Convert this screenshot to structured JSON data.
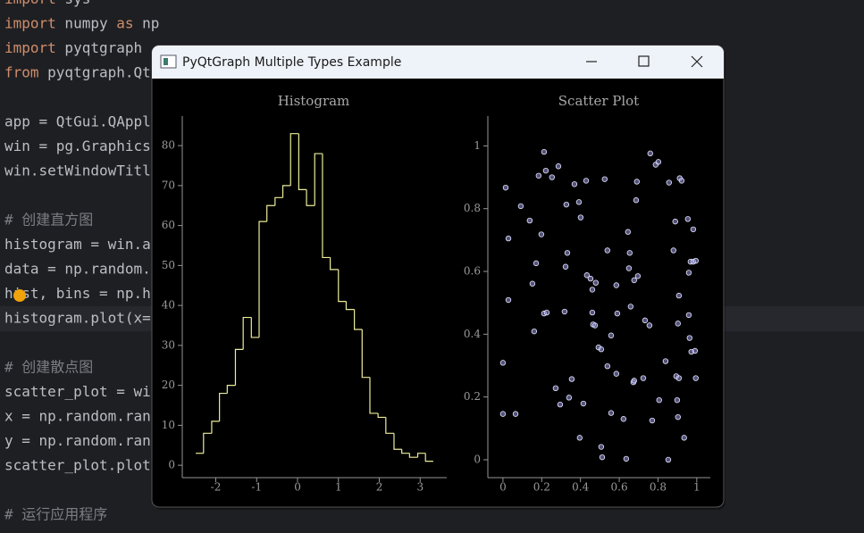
{
  "editor": {
    "blocks": [
      [
        "import sys",
        "import numpy as np",
        "import pyqtgraph",
        "from pyqtgraph.Qt"
      ],
      [
        "app = QtGui.QAppl",
        "win = pg.Graphics",
        "win.setWindowTitl"
      ],
      [
        "# 创建直方图",
        "histogram = win.a",
        "data = np.random.",
        "hist, bins = np.h",
        "histogram.plot(x="
      ],
      [
        "# 创建散点图",
        "scatter_plot = wi",
        "x = np.random.ran",
        "y = np.random.ran",
        "scatter_plot.plot"
      ],
      [
        "# 运行应用程序"
      ]
    ]
  },
  "window": {
    "title": "PyQtGraph Multiple Types Example"
  },
  "chart_data": [
    {
      "type": "histogram",
      "title": "Histogram",
      "bins": [
        -2.49,
        -2.3,
        -2.1,
        -1.91,
        -1.72,
        -1.52,
        -1.33,
        -1.13,
        -0.94,
        -0.75,
        -0.55,
        -0.36,
        -0.17,
        0.03,
        0.22,
        0.42,
        0.61,
        0.8,
        1.0,
        1.19,
        1.39,
        1.58,
        1.77,
        1.97,
        2.16,
        2.36,
        2.55,
        2.74,
        2.94,
        3.13,
        3.32
      ],
      "values": [
        3,
        8,
        11,
        18,
        20,
        29,
        37,
        32,
        61,
        65,
        67,
        70,
        83,
        69,
        65,
        78,
        52,
        49,
        41,
        39,
        34,
        22,
        13,
        12,
        8,
        4,
        3,
        2,
        3,
        1
      ],
      "color": "#ecec9c",
      "xlim": [
        -2.82,
        3.65
      ],
      "ylim": [
        -3.1,
        87.4
      ],
      "xticks": [
        -2,
        -1,
        0,
        1,
        2,
        3
      ],
      "yticks": [
        0,
        10,
        20,
        30,
        40,
        50,
        60,
        70,
        80
      ]
    },
    {
      "type": "scatter",
      "title": "Scatter Plot",
      "x": [
        0.014,
        0.028,
        0.028,
        0,
        0,
        0.065,
        0.092,
        0.138,
        0.171,
        0.152,
        0.184,
        0.198,
        0.212,
        0.221,
        0.212,
        0.226,
        0.161,
        0.253,
        0.286,
        0.272,
        0.295,
        0.318,
        0.327,
        0.323,
        0.332,
        0.341,
        0.355,
        0.369,
        0.392,
        0.401,
        0.396,
        0.415,
        0.429,
        0.433,
        0.452,
        0.461,
        0.461,
        0.465,
        0.475,
        0.479,
        0.493,
        0.507,
        0.507,
        0.512,
        0.525,
        0.539,
        0.539,
        0.558,
        0.558,
        0.585,
        0.585,
        0.59,
        0.622,
        0.636,
        0.645,
        0.654,
        0.65,
        0.659,
        0.673,
        0.677,
        0.677,
        0.687,
        0.691,
        0.696,
        0.724,
        0.733,
        0.756,
        0.76,
        0.77,
        0.788,
        0.802,
        0.806,
        0.839,
        0.853,
        0.857,
        0.88,
        0.889,
        0.894,
        0.899,
        0.903,
        0.908,
        0.903,
        0.908,
        0.912,
        0.922,
        0.935,
        0.954,
        0.959,
        0.959,
        0.963,
        0.968,
        0.972,
        0.982,
        0.991,
        0.982,
        0.995,
        0.995
      ],
      "y": [
        0.867,
        0.705,
        0.509,
        0.309,
        0.146,
        0.146,
        0.808,
        0.762,
        0.626,
        0.561,
        0.905,
        0.718,
        0.981,
        0.921,
        0.466,
        0.469,
        0.409,
        0.9,
        0.935,
        0.228,
        0.176,
        0.472,
        0.813,
        0.615,
        0.659,
        0.198,
        0.257,
        0.878,
        0.821,
        0.772,
        0.07,
        0.179,
        0.889,
        0.588,
        0.577,
        0.542,
        0.469,
        0.431,
        0.428,
        0.564,
        0.358,
        0.352,
        0.041,
        0.008,
        0.894,
        0.298,
        0.667,
        0.149,
        0.396,
        0.556,
        0.274,
        0.466,
        0.13,
        0.003,
        0.726,
        0.659,
        0.61,
        0.488,
        0.247,
        0.252,
        0.572,
        0.827,
        0.886,
        0.585,
        0.26,
        0.444,
        0.428,
        0.976,
        0.125,
        0.94,
        0.949,
        0.19,
        0.314,
        0,
        0.883,
        0.667,
        0.759,
        0.266,
        0.19,
        0.434,
        0.523,
        0.136,
        0.26,
        0.897,
        0.889,
        0.07,
        0.767,
        0.461,
        0.596,
        0.388,
        0.631,
        0.344,
        0.734,
        0.347,
        0.631,
        0.26,
        0.634
      ],
      "color": "#9494dc",
      "xlim": [
        -0.078,
        1.07
      ],
      "ylim": [
        -0.057,
        1.095
      ],
      "xticks": [
        0,
        0.2,
        0.4,
        0.6,
        0.8,
        1
      ],
      "yticks": [
        0,
        0.2,
        0.4,
        0.6,
        0.8,
        1
      ]
    }
  ]
}
